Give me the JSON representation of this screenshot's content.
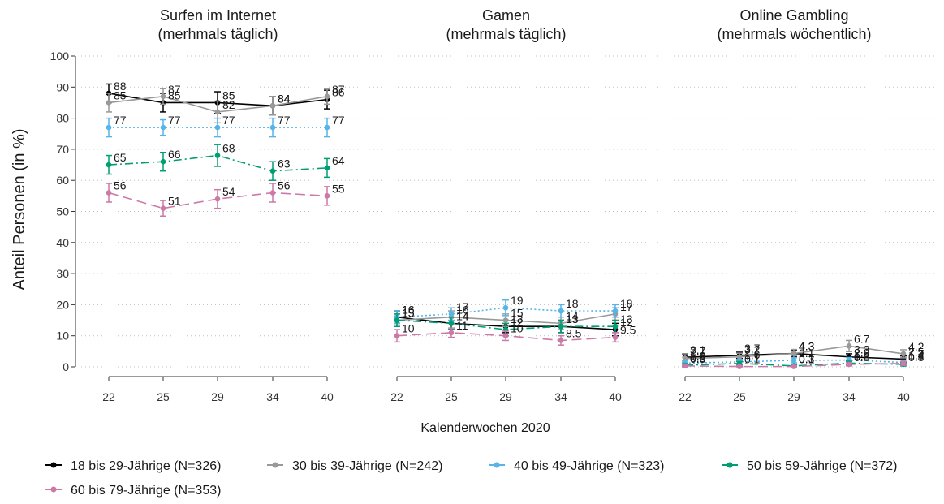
{
  "chart_data": {
    "type": "line",
    "ylabel": "Anteil Personen (in %)",
    "xlabel": "Kalenderwochen 2020",
    "ylim": [
      0,
      100
    ],
    "yticks": [
      0,
      10,
      20,
      30,
      40,
      50,
      60,
      70,
      80,
      90,
      100
    ],
    "x": [
      "22",
      "25",
      "29",
      "34",
      "40"
    ],
    "grid": "horizontal-dotted",
    "legend_position": "bottom",
    "panels": [
      {
        "title_line1": "Surfen im Internet",
        "title_line2": "(merhmals täglich)",
        "series": [
          {
            "name": "18 bis 29-Jährige (N=326)",
            "color": "#000000",
            "dash": "solid",
            "values": [
              88,
              85,
              85,
              84,
              86
            ],
            "labels": [
              "88",
              "85",
              "85",
              "84",
              "86"
            ],
            "err": [
              3,
              3,
              3.5,
              3,
              3
            ]
          },
          {
            "name": "30 bis 39-Jährige (N=242)",
            "color": "#999999",
            "dash": "solid",
            "values": [
              85,
              87,
              82,
              84,
              87
            ],
            "labels": [
              "85",
              "87",
              "82",
              "84",
              "87"
            ],
            "err": [
              3,
              2.5,
              3.5,
              3,
              2.5
            ]
          },
          {
            "name": "40 bis 49-Jährige (N=323)",
            "color": "#56B4E9",
            "dash": "dotted",
            "values": [
              77,
              77,
              77,
              77,
              77
            ],
            "labels": [
              "77",
              "77",
              "77",
              "77",
              "77"
            ],
            "err": [
              3,
              2.5,
              3,
              3,
              3
            ]
          },
          {
            "name": "50 bis 59-Jährige (N=372)",
            "color": "#009E73",
            "dash": "dashdot",
            "values": [
              65,
              66,
              68,
              63,
              64
            ],
            "labels": [
              "65",
              "66",
              "68",
              "63",
              "64"
            ],
            "err": [
              3,
              3,
              3.5,
              3,
              3
            ]
          },
          {
            "name": "60 bis 79-Jährige (N=353)",
            "color": "#CC79A7",
            "dash": "longdash",
            "values": [
              56,
              51,
              54,
              56,
              55
            ],
            "labels": [
              "56",
              "51",
              "54",
              "56",
              "55"
            ],
            "err": [
              3,
              2.5,
              3,
              3,
              3
            ]
          }
        ]
      },
      {
        "title_line1": "Gamen",
        "title_line2": "(mehrmals täglich)",
        "series": [
          {
            "name": "18 bis 29-Jährige (N=326)",
            "color": "#000000",
            "dash": "solid",
            "values": [
              16,
              14,
              13,
              13,
              12
            ],
            "labels": [
              "16",
              "14",
              "13",
              "13",
              "12"
            ],
            "err": [
              2,
              2,
              2,
              2,
              2
            ]
          },
          {
            "name": "30 bis 39-Jährige (N=242)",
            "color": "#999999",
            "dash": "solid",
            "values": [
              15,
              16,
              15,
              14,
              17
            ],
            "labels": [
              "15",
              "16",
              "15",
              "14",
              "17"
            ],
            "err": [
              2,
              2,
              2,
              2,
              2
            ]
          },
          {
            "name": "40 bis 49-Jährige (N=323)",
            "color": "#56B4E9",
            "dash": "dotted",
            "values": [
              16,
              17,
              19,
              18,
              18
            ],
            "labels": [
              "16",
              "17",
              "19",
              "18",
              "18"
            ],
            "err": [
              2,
              2,
              2.5,
              2,
              2
            ]
          },
          {
            "name": "50 bis 59-Jährige (N=372)",
            "color": "#009E73",
            "dash": "dashdot",
            "values": [
              15,
              14,
              12,
              13,
              13
            ],
            "labels": [
              "15",
              "14",
              "12",
              "13",
              "13"
            ],
            "err": [
              2,
              2,
              2,
              2,
              2
            ]
          },
          {
            "name": "60 bis 79-Jährige (N=353)",
            "color": "#CC79A7",
            "dash": "longdash",
            "values": [
              10,
              11,
              10,
              8.5,
              9.5
            ],
            "labels": [
              "10",
              "11",
              "10",
              "8.5",
              "9.5"
            ],
            "err": [
              2,
              1.5,
              1.5,
              1.5,
              1.5
            ]
          }
        ]
      },
      {
        "title_line1": "Online Gambling",
        "title_line2": "(mehrmals wöchentlich)",
        "series": [
          {
            "name": "18 bis 29-Jährige (N=326)",
            "color": "#000000",
            "dash": "solid",
            "values": [
              3.1,
              3.7,
              4.3,
              3.2,
              2.5
            ],
            "labels": [
              "3.1",
              "3.7",
              "4.3",
              "3.2",
              "2.5"
            ],
            "err": [
              1,
              1,
              1,
              1,
              1
            ]
          },
          {
            "name": "30 bis 39-Jährige (N=242)",
            "color": "#999999",
            "dash": "solid",
            "values": [
              2.7,
              3.2,
              4.3,
              6.7,
              4.2
            ],
            "labels": [
              "2.7",
              "3.2",
              "4.3",
              "6.7",
              "4.2"
            ],
            "err": [
              1.2,
              1.2,
              1.3,
              1.8,
              1.3
            ]
          },
          {
            "name": "40 bis 49-Jährige (N=323)",
            "color": "#56B4E9",
            "dash": "dotted",
            "values": [
              1.2,
              1.6,
              2.1,
              2.2,
              1.4
            ],
            "labels": [
              "1.2",
              "1.6",
              "2.1",
              "2.2",
              "1.4"
            ],
            "err": [
              0.8,
              0.8,
              0.8,
              0.8,
              0.8
            ]
          },
          {
            "name": "50 bis 59-Jährige (N=372)",
            "color": "#009E73",
            "dash": "dashdot",
            "values": [
              0.5,
              1.1,
              0.3,
              1.2,
              0.8
            ],
            "labels": ".5|1.1|.3|1.2|.8",
            "labels_list": [
              "0.5",
              "1.1",
              "0.3",
              "1.2",
              "0.8"
            ],
            "err": [
              0.5,
              0.6,
              0.4,
              0.6,
              0.5
            ]
          },
          {
            "name": "60 bis 79-Jährige (N=353)",
            "color": "#CC79A7",
            "dash": "longdash",
            "values": [
              0.3,
              0.1,
              0.1,
              0.8,
              1.1
            ],
            "labels": ".3|.1|.1|.8|1.1",
            "labels_list": [
              "0.3",
              "0.1",
              "0.1",
              "0.8",
              "1.1"
            ],
            "err": [
              0.3,
              0.2,
              0.2,
              0.5,
              0.6
            ]
          }
        ]
      }
    ],
    "legend": [
      {
        "label": "18 bis 29-Jährige (N=326)",
        "color": "#000000"
      },
      {
        "label": "30 bis 39-Jährige (N=242)",
        "color": "#999999"
      },
      {
        "label": "40 bis 49-Jährige (N=323)",
        "color": "#56B4E9"
      },
      {
        "label": "50 bis 59-Jährige (N=372)",
        "color": "#009E73"
      },
      {
        "label": "60 bis 79-Jährige (N=353)",
        "color": "#CC79A7"
      }
    ]
  }
}
